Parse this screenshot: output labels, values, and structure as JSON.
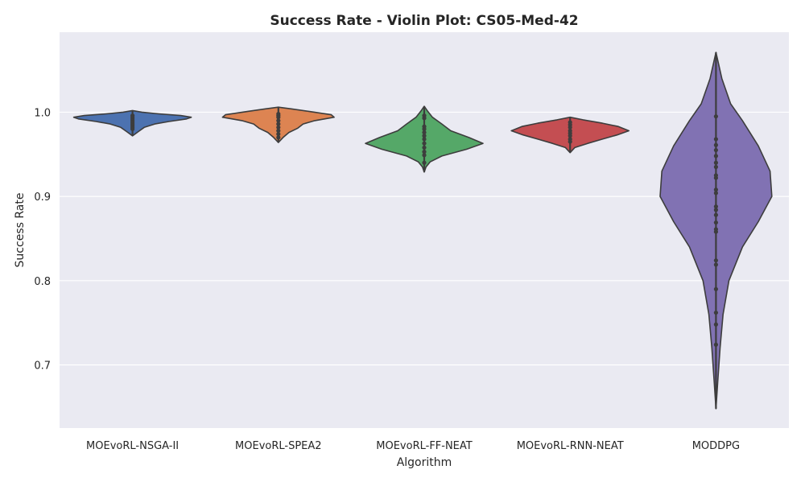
{
  "chart_data": {
    "type": "violin",
    "title": "Success Rate - Violin Plot: CS05-Med-42",
    "xlabel": "Algorithm",
    "ylabel": "Success Rate",
    "ylim": [
      0.625,
      1.095
    ],
    "yticks": [
      "0.7",
      "0.8",
      "0.9",
      "1.0"
    ],
    "grid": true,
    "background": "#EAEAF2",
    "categories": [
      "MOEvoRL-NSGA-II",
      "MOEvoRL-SPEA2",
      "MOEvoRL-FF-NEAT",
      "MOEvoRL-RNN-NEAT",
      "MODDPG"
    ],
    "series": [
      {
        "color": "#4C72B0",
        "ymin": 0.972,
        "ymax": 1.002,
        "profile": [
          [
            0.972,
            0.0
          ],
          [
            0.977,
            0.1
          ],
          [
            0.982,
            0.2
          ],
          [
            0.986,
            0.38
          ],
          [
            0.989,
            0.62
          ],
          [
            0.992,
            0.92
          ],
          [
            0.994,
            1.0
          ],
          [
            0.996,
            0.82
          ],
          [
            0.998,
            0.45
          ],
          [
            1.0,
            0.16
          ],
          [
            1.002,
            0.0
          ]
        ],
        "points": [
          0.996,
          0.994,
          0.992,
          0.99,
          0.988,
          0.986,
          0.984,
          0.982,
          0.98
        ]
      },
      {
        "color": "#DD8452",
        "ymin": 0.964,
        "ymax": 1.006,
        "profile": [
          [
            0.964,
            0.0
          ],
          [
            0.97,
            0.08
          ],
          [
            0.976,
            0.18
          ],
          [
            0.981,
            0.33
          ],
          [
            0.986,
            0.42
          ],
          [
            0.99,
            0.62
          ],
          [
            0.994,
            0.95
          ],
          [
            0.997,
            0.9
          ],
          [
            1.001,
            0.52
          ],
          [
            1.004,
            0.22
          ],
          [
            1.006,
            0.0
          ]
        ],
        "points": [
          0.998,
          0.996,
          0.994,
          0.99,
          0.986,
          0.982,
          0.978,
          0.974,
          0.97
        ]
      },
      {
        "color": "#55A868",
        "ymin": 0.929,
        "ymax": 1.007,
        "profile": [
          [
            0.929,
            0.0
          ],
          [
            0.935,
            0.03
          ],
          [
            0.941,
            0.1
          ],
          [
            0.948,
            0.3
          ],
          [
            0.956,
            0.72
          ],
          [
            0.963,
            1.0
          ],
          [
            0.97,
            0.76
          ],
          [
            0.978,
            0.45
          ],
          [
            0.986,
            0.3
          ],
          [
            0.994,
            0.14
          ],
          [
            1.001,
            0.06
          ],
          [
            1.007,
            0.0
          ]
        ],
        "points": [
          0.996,
          0.993,
          0.983,
          0.98,
          0.976,
          0.972,
          0.968,
          0.963,
          0.958,
          0.953,
          0.949,
          0.94
        ]
      },
      {
        "color": "#C44E52",
        "ymin": 0.952,
        "ymax": 0.994,
        "profile": [
          [
            0.952,
            0.0
          ],
          [
            0.958,
            0.08
          ],
          [
            0.963,
            0.3
          ],
          [
            0.968,
            0.55
          ],
          [
            0.973,
            0.8
          ],
          [
            0.978,
            1.0
          ],
          [
            0.983,
            0.82
          ],
          [
            0.987,
            0.55
          ],
          [
            0.991,
            0.22
          ],
          [
            0.994,
            0.0
          ]
        ],
        "points": [
          0.988,
          0.985,
          0.982,
          0.978,
          0.975,
          0.972,
          0.968,
          0.965
        ]
      },
      {
        "color": "#8172B3",
        "ymin": 0.648,
        "ymax": 1.071,
        "profile": [
          [
            0.648,
            0.0
          ],
          [
            0.68,
            0.03
          ],
          [
            0.72,
            0.07
          ],
          [
            0.76,
            0.12
          ],
          [
            0.8,
            0.22
          ],
          [
            0.84,
            0.45
          ],
          [
            0.87,
            0.72
          ],
          [
            0.9,
            0.95
          ],
          [
            0.93,
            0.92
          ],
          [
            0.96,
            0.72
          ],
          [
            0.99,
            0.45
          ],
          [
            1.01,
            0.25
          ],
          [
            1.04,
            0.1
          ],
          [
            1.071,
            0.0
          ]
        ],
        "points": [
          0.995,
          0.968,
          0.961,
          0.955,
          0.948,
          0.94,
          0.935,
          0.925,
          0.922,
          0.908,
          0.904,
          0.888,
          0.884,
          0.878,
          0.869,
          0.861,
          0.858,
          0.824,
          0.819,
          0.79,
          0.762,
          0.748,
          0.724
        ]
      }
    ]
  }
}
